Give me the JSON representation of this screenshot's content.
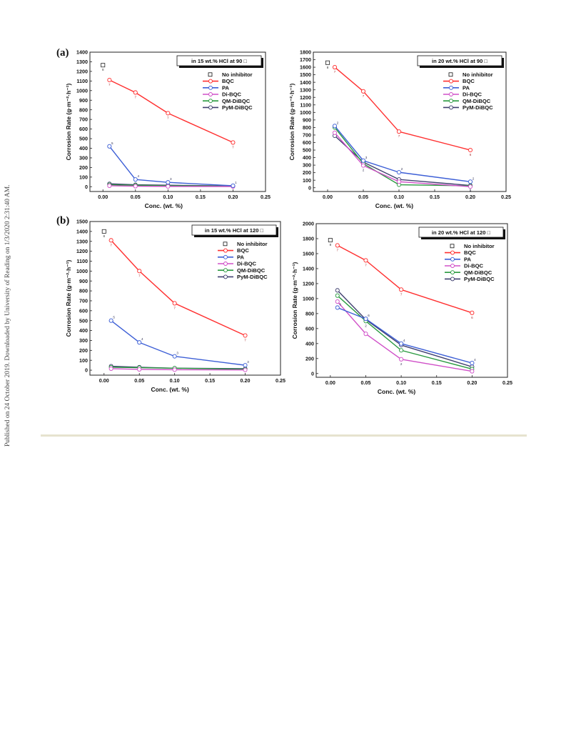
{
  "side_note": "Published on 24 October 2019. Downloaded by University of Reading on 1/3/2020 2:31:40 AM.",
  "panel_labels": [
    "(a)",
    "(b)"
  ],
  "chart_data": [
    {
      "type": "line",
      "panel": "(a)",
      "title": "in 15 wt.% HCl at 90 □",
      "xlabel": "Conc. (wt. %)",
      "ylabel": "Corrosion Rate (g·m⁻²·h⁻¹)",
      "xlim": [
        -0.02,
        0.25
      ],
      "ylim": [
        -50,
        1400
      ],
      "xticks": [
        0.0,
        0.05,
        0.1,
        0.15,
        0.2,
        0.25
      ],
      "yticks": [
        0,
        100,
        200,
        300,
        400,
        500,
        600,
        700,
        800,
        900,
        1000,
        1100,
        1200,
        1300,
        1400
      ],
      "xtick_labels": [
        "0.00",
        "0.05",
        "0.10",
        "0.15",
        "0.20",
        "0.25"
      ],
      "legend_position": "top-right",
      "no_inhibitor": {
        "name": "No inhibitor",
        "x": 0.0,
        "y": 1265,
        "label": "8"
      },
      "series": [
        {
          "name": "BQC",
          "color": "#ff3030",
          "x": [
            0.01,
            0.05,
            0.1,
            0.2
          ],
          "y": [
            1110,
            980,
            765,
            460
          ],
          "labels": [
            "7",
            "7",
            "7",
            "7"
          ]
        },
        {
          "name": "PA",
          "color": "#3d5fd6",
          "x": [
            0.01,
            0.05,
            0.1,
            0.2
          ],
          "y": [
            420,
            75,
            45,
            10
          ],
          "labels": [
            "5",
            "4",
            "3",
            "1"
          ]
        },
        {
          "name": "Di-BQC",
          "color": "#d050c8",
          "x": [
            0.01,
            0.05,
            0.1,
            0.2
          ],
          "y": [
            10,
            5,
            3,
            2
          ],
          "labels": [
            "",
            "",
            "",
            ""
          ]
        },
        {
          "name": "QM-DiBQC",
          "color": "#2a9a40",
          "x": [
            0.01,
            0.05,
            0.1,
            0.2
          ],
          "y": [
            20,
            15,
            10,
            5
          ],
          "labels": [
            "",
            "",
            "",
            ""
          ]
        },
        {
          "name": "PyM-DiBQC",
          "color": "#404070",
          "x": [
            0.01,
            0.05,
            0.1,
            0.2
          ],
          "y": [
            30,
            20,
            15,
            8
          ],
          "labels": [
            "",
            "",
            "",
            ""
          ]
        }
      ]
    },
    {
      "type": "line",
      "panel": "(a)",
      "title": "in 20 wt.% HCl at 90 □",
      "xlabel": "Conc. (wt. %)",
      "ylabel": "Corrosion Rate (g·m⁻²·h⁻¹)",
      "xlim": [
        -0.02,
        0.25
      ],
      "ylim": [
        -50,
        1800
      ],
      "xticks": [
        0.0,
        0.05,
        0.1,
        0.15,
        0.2,
        0.25
      ],
      "yticks": [
        0,
        100,
        200,
        300,
        400,
        500,
        600,
        700,
        800,
        900,
        1000,
        1100,
        1200,
        1300,
        1400,
        1500,
        1600,
        1700,
        1800
      ],
      "xtick_labels": [
        "0.00",
        "0.05",
        "0.10",
        "0.15",
        "0.20",
        "0.25"
      ],
      "legend_position": "top-right",
      "no_inhibitor": {
        "name": "No inhibitor",
        "x": 0.0,
        "y": 1660,
        "label": "8"
      },
      "series": [
        {
          "name": "BQC",
          "color": "#ff3030",
          "x": [
            0.01,
            0.05,
            0.1,
            0.2
          ],
          "y": [
            1600,
            1280,
            745,
            500
          ],
          "labels": [
            "7",
            "7",
            "7",
            "6"
          ]
        },
        {
          "name": "PA",
          "color": "#3d5fd6",
          "x": [
            0.01,
            0.05,
            0.1,
            0.2
          ],
          "y": [
            820,
            360,
            205,
            80
          ],
          "labels": [
            "2",
            "3",
            "2",
            "2"
          ]
        },
        {
          "name": "Di-BQC",
          "color": "#d050c8",
          "x": [
            0.01,
            0.05,
            0.1,
            0.2
          ],
          "y": [
            730,
            295,
            80,
            15
          ],
          "labels": [
            "",
            "2",
            "",
            ""
          ]
        },
        {
          "name": "QM-DiBQC",
          "color": "#2a9a40",
          "x": [
            0.01,
            0.05,
            0.1,
            0.2
          ],
          "y": [
            800,
            320,
            40,
            25
          ],
          "labels": [
            "2",
            "",
            "",
            ""
          ]
        },
        {
          "name": "PyM-DiBQC",
          "color": "#404070",
          "x": [
            0.01,
            0.05,
            0.1,
            0.2
          ],
          "y": [
            690,
            340,
            110,
            30
          ],
          "labels": [
            "",
            "",
            "2",
            "1"
          ]
        }
      ]
    },
    {
      "type": "line",
      "panel": "(b)",
      "title": "in 15 wt.% HCl at 120 □",
      "xlabel": "Conc. (wt. %)",
      "ylabel": "Corrosion Rate (g·m⁻²·h⁻¹)",
      "xlim": [
        -0.02,
        0.25
      ],
      "ylim": [
        -50,
        1500
      ],
      "xticks": [
        0.0,
        0.05,
        0.1,
        0.15,
        0.2,
        0.25
      ],
      "yticks": [
        0,
        100,
        200,
        300,
        400,
        500,
        600,
        700,
        800,
        900,
        1000,
        1100,
        1200,
        1300,
        1400,
        1500
      ],
      "xtick_labels": [
        "0.00",
        "0.05",
        "0.10",
        "0.15",
        "0.20",
        "0.25"
      ],
      "legend_position": "top-right",
      "no_inhibitor": {
        "name": "No inhibitor",
        "x": 0.0,
        "y": 1400,
        "label": "8"
      },
      "series": [
        {
          "name": "BQC",
          "color": "#ff3030",
          "x": [
            0.01,
            0.05,
            0.1,
            0.2
          ],
          "y": [
            1310,
            1000,
            675,
            350
          ],
          "labels": [
            "7",
            "7",
            "7",
            "7"
          ]
        },
        {
          "name": "PA",
          "color": "#3d5fd6",
          "x": [
            0.01,
            0.05,
            0.1,
            0.2
          ],
          "y": [
            500,
            280,
            140,
            50
          ],
          "labels": [
            "5",
            "4",
            "3",
            "3"
          ]
        },
        {
          "name": "Di-BQC",
          "color": "#d050c8",
          "x": [
            0.01,
            0.05,
            0.1,
            0.2
          ],
          "y": [
            15,
            8,
            5,
            3
          ],
          "labels": [
            "",
            "",
            "",
            ""
          ]
        },
        {
          "name": "QM-DiBQC",
          "color": "#2a9a40",
          "x": [
            0.01,
            0.05,
            0.1,
            0.2
          ],
          "y": [
            30,
            25,
            20,
            10
          ],
          "labels": [
            "",
            "",
            "",
            ""
          ]
        },
        {
          "name": "PyM-DiBQC",
          "color": "#404070",
          "x": [
            0.01,
            0.05,
            0.1,
            0.2
          ],
          "y": [
            40,
            30,
            20,
            15
          ],
          "labels": [
            "",
            "",
            "",
            ""
          ]
        }
      ]
    },
    {
      "type": "line",
      "panel": "(b)",
      "title": "in 20 wt.% HCl at 120 □",
      "xlabel": "Conc. (wt. %)",
      "ylabel": "Corrosion Rate (g·m⁻²·h⁻¹)",
      "xlim": [
        -0.02,
        0.25
      ],
      "ylim": [
        -50,
        2000
      ],
      "xticks": [
        0.0,
        0.05,
        0.1,
        0.15,
        0.2,
        0.25
      ],
      "yticks": [
        0,
        200,
        400,
        600,
        800,
        1000,
        1200,
        1400,
        1600,
        1800,
        2000
      ],
      "xtick_labels": [
        "0.00",
        "0.05",
        "0.10",
        "0.15",
        "0.20",
        "0.25"
      ],
      "legend_position": "top-right",
      "no_inhibitor": {
        "name": "No inhibitor",
        "x": 0.0,
        "y": 1780,
        "label": "8"
      },
      "series": [
        {
          "name": "BQC",
          "color": "#ff3030",
          "x": [
            0.01,
            0.05,
            0.1,
            0.2
          ],
          "y": [
            1710,
            1510,
            1120,
            810
          ],
          "labels": [
            "7",
            "7",
            "7",
            "6"
          ]
        },
        {
          "name": "PA",
          "color": "#3d5fd6",
          "x": [
            0.01,
            0.05,
            0.1,
            0.2
          ],
          "y": [
            880,
            730,
            400,
            140
          ],
          "labels": [
            "6",
            "6",
            "4",
            "4"
          ]
        },
        {
          "name": "Di-BQC",
          "color": "#d050c8",
          "x": [
            0.01,
            0.05,
            0.1,
            0.2
          ],
          "y": [
            960,
            530,
            190,
            30
          ],
          "labels": [
            "",
            "",
            "2",
            ""
          ]
        },
        {
          "name": "QM-DiBQC",
          "color": "#2a9a40",
          "x": [
            0.01,
            0.05,
            0.1,
            0.2
          ],
          "y": [
            1040,
            700,
            310,
            60
          ],
          "labels": [
            "",
            "2",
            "",
            ""
          ]
        },
        {
          "name": "PyM-DiBQC",
          "color": "#404070",
          "x": [
            0.01,
            0.05,
            0.1,
            0.2
          ],
          "y": [
            1110,
            720,
            380,
            90
          ],
          "labels": [
            "3",
            "",
            "",
            "3"
          ]
        }
      ]
    }
  ]
}
